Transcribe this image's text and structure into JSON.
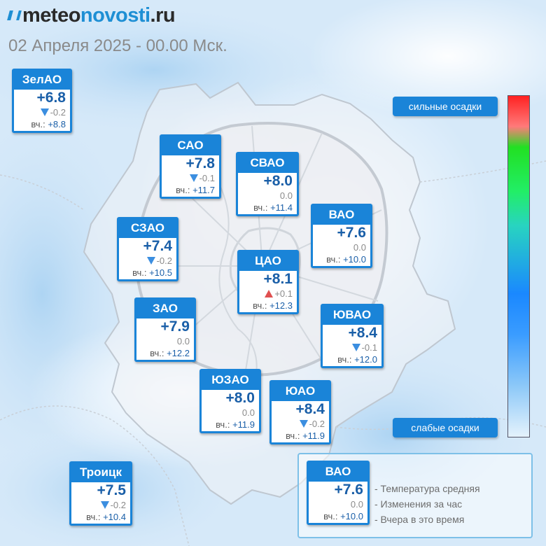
{
  "header": {
    "logo_part1": "meteo",
    "logo_part2": "novosti",
    "logo_part3": ".ru",
    "date": "02 Апреля 2025 - 00.00 Мск."
  },
  "districts": [
    {
      "name": "ЗелАО",
      "temp": "+6.8",
      "change": "-0.2",
      "change_dir": "down",
      "yesterday_label": "вч.:",
      "yesterday": "+8.8"
    },
    {
      "name": "САО",
      "temp": "+7.8",
      "change": "-0.1",
      "change_dir": "down",
      "yesterday_label": "вч.:",
      "yesterday": "+11.7"
    },
    {
      "name": "СВАО",
      "temp": "+8.0",
      "change": "0.0",
      "change_dir": "none",
      "yesterday_label": "вч.:",
      "yesterday": "+11.4"
    },
    {
      "name": "ВАО",
      "temp": "+7.6",
      "change": "0.0",
      "change_dir": "none",
      "yesterday_label": "вч.:",
      "yesterday": "+10.0"
    },
    {
      "name": "СЗАО",
      "temp": "+7.4",
      "change": "-0.2",
      "change_dir": "down",
      "yesterday_label": "вч.:",
      "yesterday": "+10.5"
    },
    {
      "name": "ЦАО",
      "temp": "+8.1",
      "change": "+0.1",
      "change_dir": "up",
      "yesterday_label": "вч.:",
      "yesterday": "+12.3"
    },
    {
      "name": "ЗАО",
      "temp": "+7.9",
      "change": "0.0",
      "change_dir": "none",
      "yesterday_label": "вч.:",
      "yesterday": "+12.2"
    },
    {
      "name": "ЮВАО",
      "temp": "+8.4",
      "change": "-0.1",
      "change_dir": "down",
      "yesterday_label": "вч.:",
      "yesterday": "+12.0"
    },
    {
      "name": "ЮЗАО",
      "temp": "+8.0",
      "change": "0.0",
      "change_dir": "none",
      "yesterday_label": "вч.:",
      "yesterday": "+11.9"
    },
    {
      "name": "ЮАО",
      "temp": "+8.4",
      "change": "-0.2",
      "change_dir": "down",
      "yesterday_label": "вч.:",
      "yesterday": "+11.9"
    },
    {
      "name": "Троицк",
      "temp": "+7.5",
      "change": "-0.2",
      "change_dir": "down",
      "yesterday_label": "вч.:",
      "yesterday": "+10.4"
    }
  ],
  "precip_scale": {
    "top_label": "сильные осадки",
    "bottom_label": "слабые осадки",
    "colors": [
      "#ff2222",
      "#22e022",
      "#1a88ff",
      "#e4f2fc"
    ]
  },
  "legend": {
    "sample": {
      "name": "ВАО",
      "temp": "+7.6",
      "change": "0.0",
      "change_dir": "none",
      "yesterday_label": "вч.:",
      "yesterday": "+10.0"
    },
    "line1": "- Температура средняя",
    "line2": "- Изменения за час",
    "line3": "- Вчера в это время"
  },
  "colors": {
    "accent": "#1a84d8",
    "temp_text": "#1a5fa8",
    "arrow_down": "#3b8ee0",
    "arrow_up": "#e05050"
  }
}
